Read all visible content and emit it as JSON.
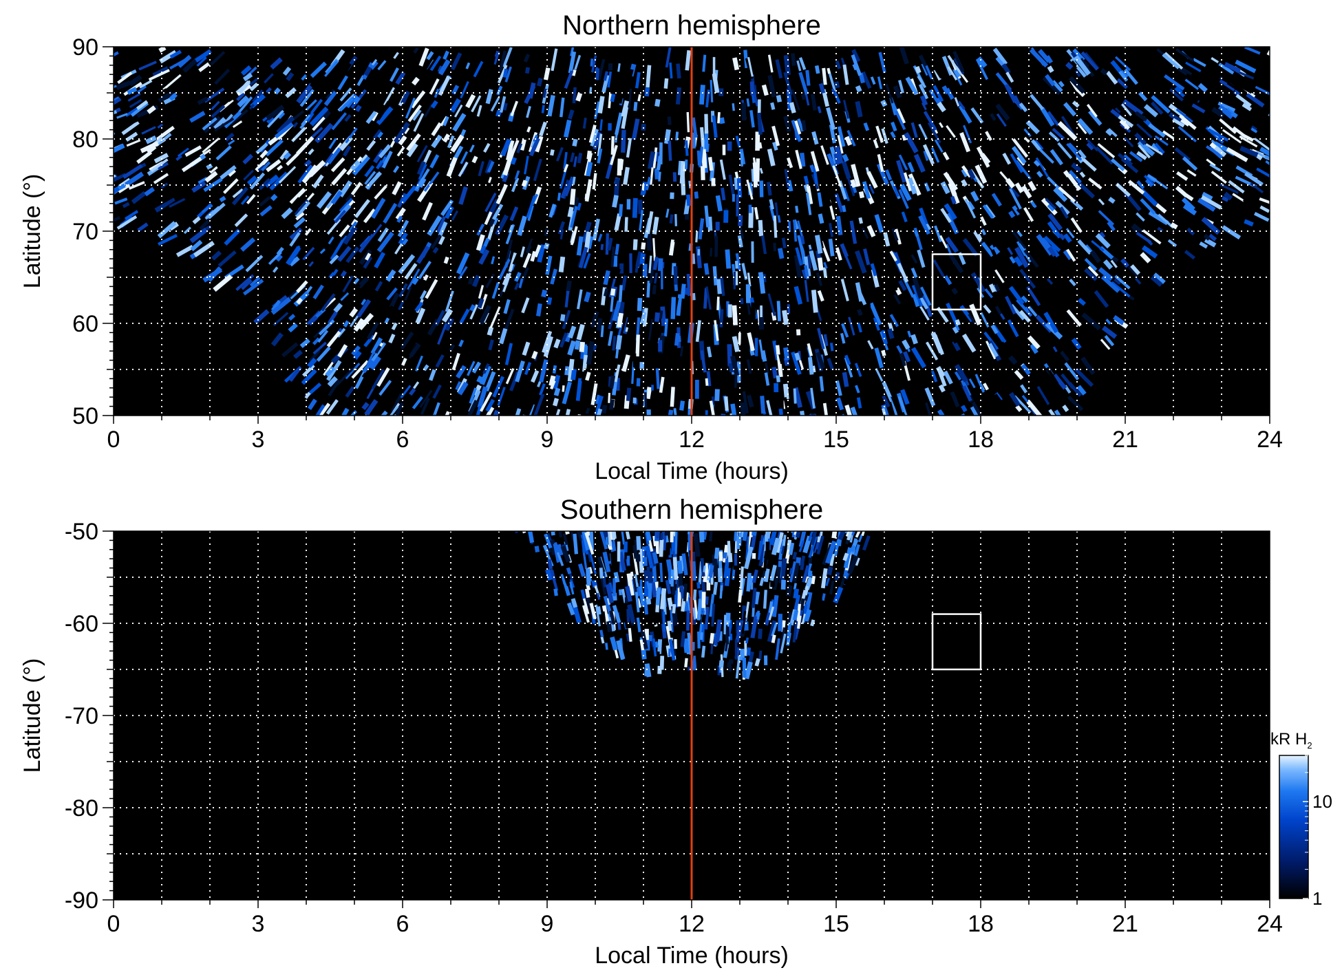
{
  "chart_data": [
    {
      "type": "heatmap",
      "title": "Northern hemisphere",
      "xlabel": "Local Time (hours)",
      "ylabel": "Latitude (°)",
      "xlim": [
        0,
        24
      ],
      "ylim": [
        50,
        90
      ],
      "xticks": [
        "0",
        "3",
        "6",
        "9",
        "12",
        "15",
        "18",
        "21",
        "24"
      ],
      "yticks": [
        "50",
        "60",
        "70",
        "80",
        "90"
      ],
      "grid": true,
      "noon_line": {
        "x": 12,
        "color": "#e04010"
      },
      "box": {
        "x": [
          17,
          18
        ],
        "y": [
          61.5,
          67.5
        ],
        "color": "#ffffff"
      },
      "coverage_boundary": [
        {
          "x": 0,
          "y": 71
        },
        {
          "x": 1,
          "y": 70
        },
        {
          "x": 2,
          "y": 67
        },
        {
          "x": 3,
          "y": 62
        },
        {
          "x": 3.7,
          "y": 56
        },
        {
          "x": 4.2,
          "y": 50
        },
        {
          "x": 19.8,
          "y": 50
        },
        {
          "x": 20.3,
          "y": 56
        },
        {
          "x": 21,
          "y": 62
        },
        {
          "x": 22,
          "y": 67
        },
        {
          "x": 23,
          "y": 70
        },
        {
          "x": 24,
          "y": 71
        }
      ]
    },
    {
      "type": "heatmap",
      "title": "Southern hemisphere",
      "xlabel": "Local Time (hours)",
      "ylabel": "Latitude (°)",
      "xlim": [
        0,
        24
      ],
      "ylim": [
        -90,
        -50
      ],
      "xticks": [
        "0",
        "3",
        "6",
        "9",
        "12",
        "15",
        "18",
        "21",
        "24"
      ],
      "yticks": [
        "-90",
        "-80",
        "-70",
        "-60",
        "-50"
      ],
      "grid": true,
      "noon_line": {
        "x": 12,
        "color": "#e04010"
      },
      "box": {
        "x": [
          17,
          18
        ],
        "y": [
          -65,
          -59
        ]
      },
      "coverage_boundary": [
        {
          "x": 8.3,
          "y": -50
        },
        {
          "x": 9,
          "y": -56
        },
        {
          "x": 10,
          "y": -62
        },
        {
          "x": 11,
          "y": -66
        },
        {
          "x": 12,
          "y": -65.5
        },
        {
          "x": 13,
          "y": -67
        },
        {
          "x": 14,
          "y": -63
        },
        {
          "x": 15,
          "y": -58
        },
        {
          "x": 15.8,
          "y": -50
        }
      ]
    }
  ],
  "colorbar": {
    "label_main": "kR H",
    "label_sub": "2",
    "scale": "log",
    "range": [
      1,
      30
    ],
    "ticks": [
      "10",
      "1"
    ],
    "colors": [
      "#000000",
      "#001a66",
      "#0044cc",
      "#1e78f0",
      "#7ab8ff",
      "#e8f4ff"
    ]
  }
}
